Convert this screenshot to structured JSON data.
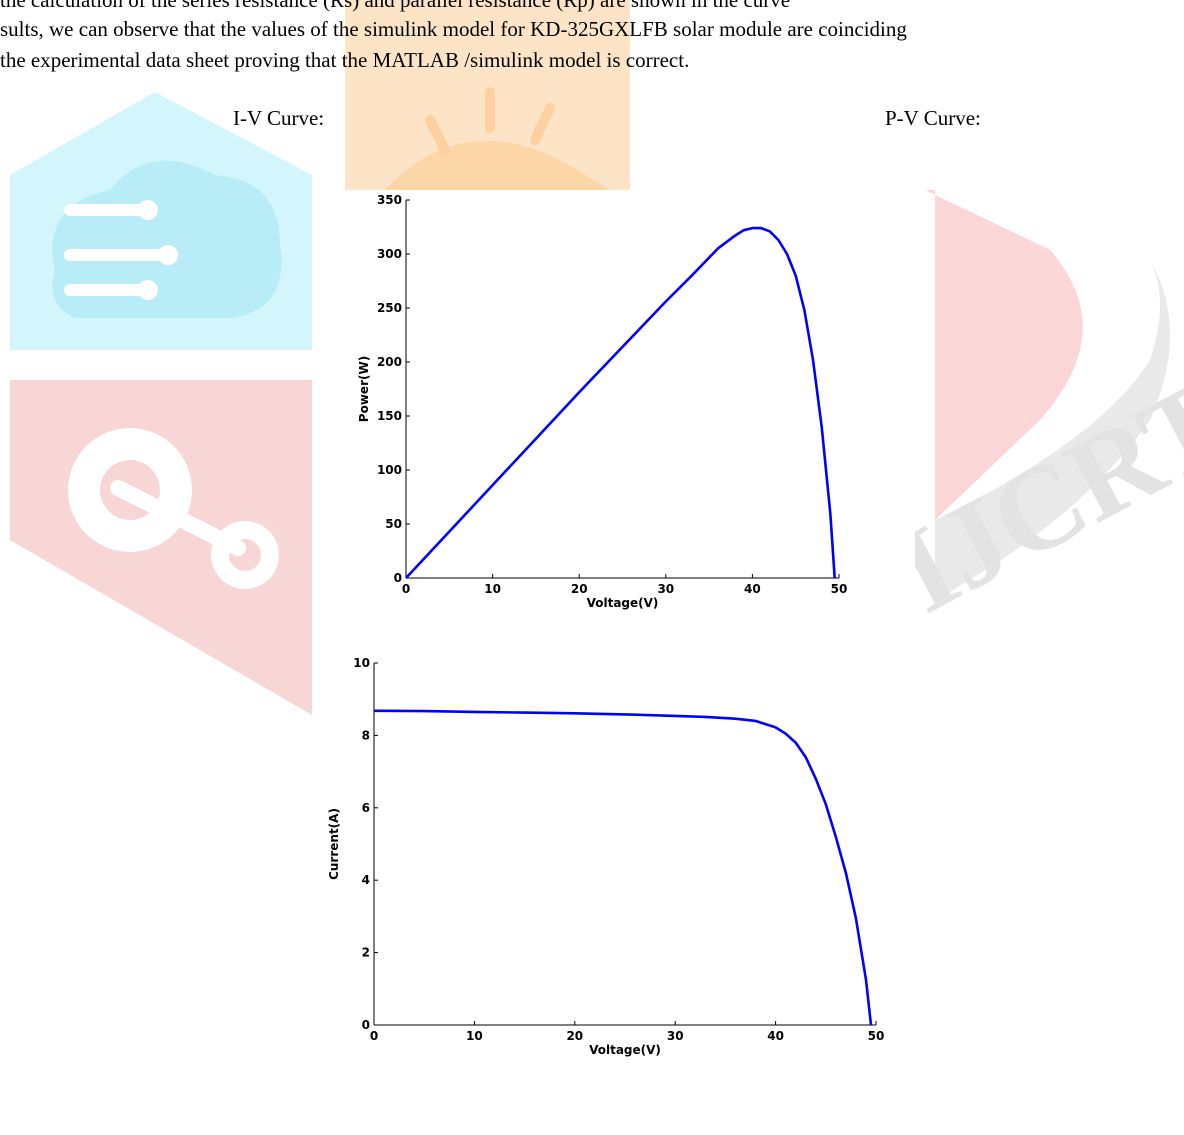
{
  "document": {
    "line_top": "the calculation of the series resistance (Rs) and parallel resistance (Rp) are shown in the curve",
    "line_1": "sults, we can observe that the  values of the simulink model  for KD-325GXLFB  solar module are coinciding",
    "line_2": " the experimental data sheet proving that the MATLAB /simulink  model is correct.",
    "iv_heading": "I-V Curve:",
    "pv_heading": "P-V Curve:"
  },
  "watermark": {
    "text": "IJCRT",
    "colors": {
      "cyan": "#cdf4fb",
      "orange": "#fde2c3",
      "red": "#f9d3d3",
      "gray": "#e7e7e7"
    }
  },
  "chart_data": [
    {
      "type": "line",
      "title": "",
      "xlabel": "Voltage(V)",
      "ylabel": "Power(W)",
      "xlim": [
        0,
        50
      ],
      "ylim": [
        0,
        350
      ],
      "xticks": [
        "0",
        "10",
        "20",
        "30",
        "40",
        "50"
      ],
      "yticks": [
        "0",
        "50",
        "100",
        "150",
        "200",
        "250",
        "300",
        "350"
      ],
      "line_color": "#0000ff",
      "series": [
        {
          "x": [
            0,
            5,
            10,
            15,
            20,
            25,
            30,
            33,
            36,
            38,
            39,
            40,
            41,
            42,
            43,
            44,
            45,
            46,
            47,
            48,
            49,
            49.5
          ],
          "y": [
            0,
            43,
            86,
            129,
            172,
            214,
            256,
            280,
            305,
            317,
            322,
            324,
            324,
            321,
            313,
            300,
            280,
            248,
            202,
            140,
            60,
            0
          ]
        }
      ]
    },
    {
      "type": "line",
      "title": "",
      "xlabel": "Voltage(V)",
      "ylabel": "Current(A)",
      "xlim": [
        0,
        50
      ],
      "ylim": [
        0,
        10
      ],
      "xticks": [
        "0",
        "10",
        "20",
        "30",
        "40",
        "50"
      ],
      "yticks": [
        "0",
        "2",
        "4",
        "6",
        "8",
        "10"
      ],
      "line_color": "#0000ff",
      "series": [
        {
          "x": [
            0,
            5,
            10,
            15,
            20,
            25,
            30,
            33,
            36,
            38,
            40,
            41,
            42,
            43,
            44,
            45,
            46,
            47,
            48,
            49,
            49.5
          ],
          "y": [
            8.68,
            8.67,
            8.65,
            8.63,
            8.61,
            8.58,
            8.54,
            8.51,
            8.46,
            8.4,
            8.22,
            8.05,
            7.8,
            7.4,
            6.8,
            6.1,
            5.2,
            4.2,
            2.95,
            1.25,
            0
          ]
        }
      ]
    }
  ]
}
